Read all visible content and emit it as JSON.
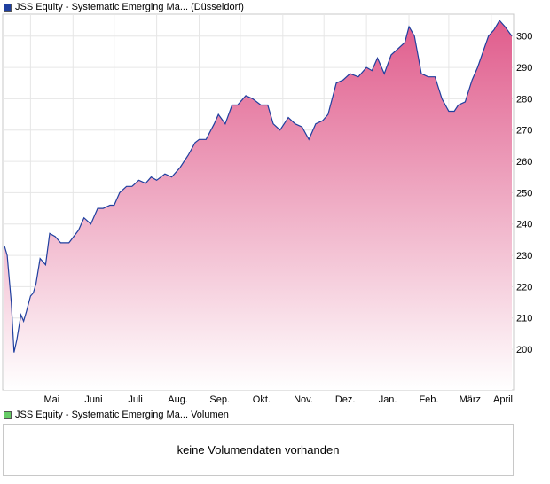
{
  "price_legend": {
    "label": "JSS Equity - Systematic Emerging Ma... (Düsseldorf)",
    "color": "#1f3f9f"
  },
  "volume_legend": {
    "label": "JSS Equity - Systematic Emerging Ma... Volumen",
    "color": "#66cc66"
  },
  "volume_panel": {
    "message": "keine Volumendaten vorhanden"
  },
  "chart_data": {
    "type": "area",
    "title": "JSS Equity - Systematic Emerging Ma... (Düsseldorf)",
    "xlabel": "",
    "ylabel": "",
    "ylim": [
      187,
      307
    ],
    "x_ticks": [
      "Mai",
      "Juni",
      "Juli",
      "Aug.",
      "Sep.",
      "Okt.",
      "Nov.",
      "Dez.",
      "Jan.",
      "Feb.",
      "März",
      "April"
    ],
    "y_ticks": [
      200,
      210,
      220,
      230,
      240,
      250,
      260,
      270,
      280,
      290,
      300
    ],
    "grid": true,
    "line_color": "#1f3f9f",
    "fill_top_color": "#e05c8c",
    "fill_bottom_color": "#ffffff",
    "series": [
      {
        "x": [
          "2023-04-12",
          "2023-04-14",
          "2023-04-17",
          "2023-04-19",
          "2023-04-21",
          "2023-04-24",
          "2023-04-26",
          "2023-04-28",
          "2023-05-01",
          "2023-05-03",
          "2023-05-05",
          "2023-05-08",
          "2023-05-12",
          "2023-05-15",
          "2023-05-19",
          "2023-05-23",
          "2023-05-29",
          "2023-06-05",
          "2023-06-09",
          "2023-06-14",
          "2023-06-19",
          "2023-06-23",
          "2023-06-28",
          "2023-07-01",
          "2023-07-05",
          "2023-07-10",
          "2023-07-14",
          "2023-07-19",
          "2023-07-24",
          "2023-07-28",
          "2023-08-01",
          "2023-08-07",
          "2023-08-12",
          "2023-08-18",
          "2023-08-24",
          "2023-08-29",
          "2023-09-01",
          "2023-09-06",
          "2023-09-12",
          "2023-09-15",
          "2023-09-20",
          "2023-09-25",
          "2023-09-29",
          "2023-10-05",
          "2023-10-10",
          "2023-10-16",
          "2023-10-21",
          "2023-10-25",
          "2023-10-30",
          "2023-11-05",
          "2023-11-10",
          "2023-11-15",
          "2023-11-20",
          "2023-11-25",
          "2023-11-30",
          "2023-12-04",
          "2023-12-10",
          "2023-12-15",
          "2023-12-20",
          "2023-12-26",
          "2024-01-01",
          "2024-01-05",
          "2024-01-09",
          "2024-01-14",
          "2024-01-19",
          "2024-01-24",
          "2024-01-29",
          "2024-02-01",
          "2024-02-05",
          "2024-02-10",
          "2024-02-15",
          "2024-02-20",
          "2024-02-25",
          "2024-03-01",
          "2024-03-05",
          "2024-03-08",
          "2024-03-13",
          "2024-03-18",
          "2024-03-22",
          "2024-03-26",
          "2024-03-30",
          "2024-04-03",
          "2024-04-07",
          "2024-04-11",
          "2024-04-16"
        ],
        "values": [
          233,
          230,
          215,
          199,
          203,
          211,
          209,
          212,
          217,
          218,
          221,
          229,
          227,
          237,
          236,
          234,
          234,
          238,
          242,
          240,
          245,
          245,
          246,
          246,
          250,
          252,
          252,
          254,
          253,
          255,
          254,
          256,
          255,
          258,
          262,
          266,
          267,
          267,
          272,
          275,
          272,
          278,
          278,
          281,
          280,
          278,
          278,
          272,
          270,
          274,
          272,
          271,
          267,
          272,
          273,
          275,
          285,
          286,
          288,
          287,
          290,
          289,
          293,
          288,
          294,
          296,
          298,
          303,
          300,
          288,
          287,
          287,
          280,
          276,
          276,
          278,
          279,
          286,
          290,
          295,
          300,
          302,
          305,
          303,
          300
        ]
      }
    ]
  }
}
